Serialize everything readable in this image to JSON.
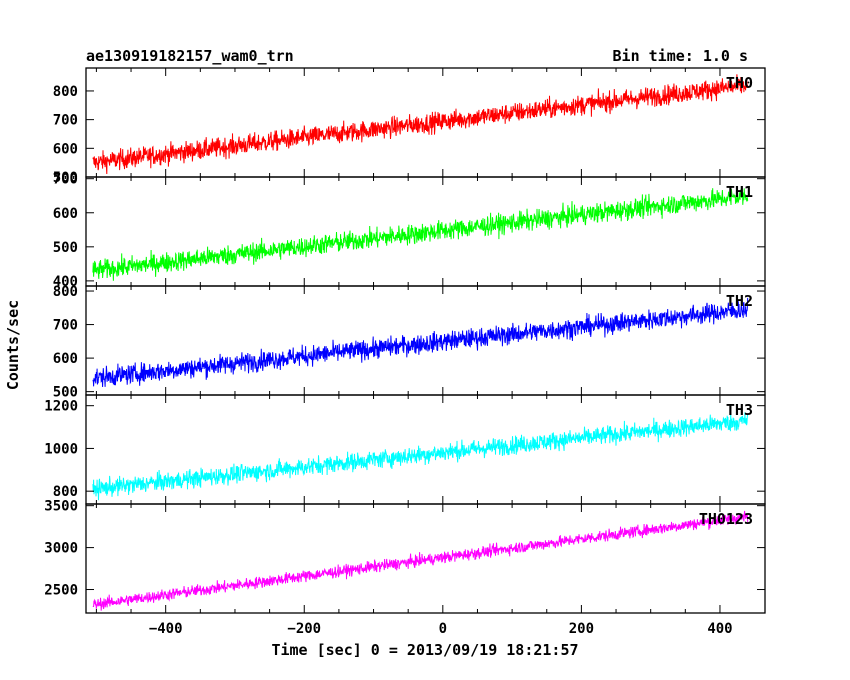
{
  "chart_data": {
    "type": "line",
    "title": "ae130919182157_wam0_trn",
    "subtitle": "Bin time: 1.0 s",
    "xlabel": "Time [sec] 0 = 2013/09/19 18:21:57",
    "ylabel": "Counts/sec",
    "xlim": [
      -515,
      465
    ],
    "x_ticks": [
      -400,
      -200,
      0,
      200,
      400
    ],
    "x_tick_labels": [
      "−400",
      "−200",
      "0",
      "200",
      "400"
    ],
    "time_range": [
      -505,
      440
    ],
    "grid": false,
    "series": [
      {
        "name": "TH0",
        "color": "#ff0000",
        "ylim": [
          500,
          880
        ],
        "y_ticks": [
          500,
          600,
          700,
          800
        ],
        "y_tick_labels": [
          "500",
          "600",
          "700",
          "800"
        ],
        "trend_start": 550,
        "trend_end": 820,
        "noise": 45
      },
      {
        "name": "TH1",
        "color": "#00ff00",
        "ylim": [
          385,
          705
        ],
        "y_ticks": [
          400,
          500,
          600,
          700
        ],
        "y_tick_labels": [
          "400",
          "500",
          "600",
          "700"
        ],
        "trend_start": 430,
        "trend_end": 650,
        "noise": 38
      },
      {
        "name": "TH2",
        "color": "#0000ff",
        "ylim": [
          490,
          815
        ],
        "y_ticks": [
          500,
          600,
          700,
          800
        ],
        "y_tick_labels": [
          "500",
          "600",
          "700",
          "800"
        ],
        "trend_start": 540,
        "trend_end": 745,
        "noise": 38
      },
      {
        "name": "TH3",
        "color": "#00ffff",
        "ylim": [
          740,
          1250
        ],
        "y_ticks": [
          800,
          1000,
          1200
        ],
        "y_tick_labels": [
          "800",
          "1000",
          "1200"
        ],
        "trend_start": 810,
        "trend_end": 1130,
        "noise": 55
      },
      {
        "name": "TH0123",
        "color": "#ff00ff",
        "ylim": [
          2220,
          3520
        ],
        "y_ticks": [
          2500,
          3000,
          3500
        ],
        "y_tick_labels": [
          "2500",
          "3000",
          "3500"
        ],
        "trend_start": 2320,
        "trend_end": 3370,
        "noise": 90
      }
    ]
  }
}
